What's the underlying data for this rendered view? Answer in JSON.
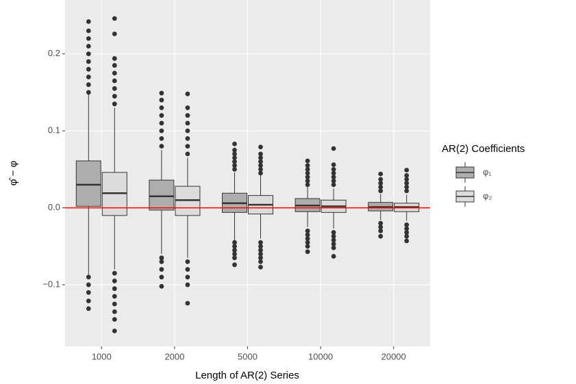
{
  "chart_data": {
    "type": "boxplot",
    "x_label": "Length of AR(2) Series",
    "y_label": "φ̂ − φ",
    "legend_title": "AR(2) Coefficients",
    "categories": [
      "1000",
      "2000",
      "5000",
      "10000",
      "20000"
    ],
    "ylim": [
      -0.18,
      0.27
    ],
    "yticks": [
      {
        "value": -0.1,
        "label": "−0.1"
      },
      {
        "value": 0,
        "label": "0.0"
      },
      0.1,
      0.2
    ],
    "grid": true,
    "hline": {
      "value": 0,
      "color": "#ff0000"
    },
    "series": [
      {
        "name": "φ₁",
        "color": "#adadad",
        "whisker_low": [
          -0.087,
          -0.06,
          -0.042,
          -0.025,
          -0.016
        ],
        "q1": [
          0.002,
          -0.003,
          -0.006,
          -0.005,
          -0.004
        ],
        "median": [
          0.03,
          0.015,
          0.006,
          0.003,
          0.001
        ],
        "q3": [
          0.061,
          0.036,
          0.019,
          0.012,
          0.007
        ],
        "whisker_high": [
          0.149,
          0.075,
          0.046,
          0.027,
          0.018
        ],
        "outliers": [
          [
            0.15,
            0.16,
            0.17,
            0.18,
            0.19,
            0.2,
            0.21,
            0.22,
            0.23,
            0.242,
            -0.09,
            -0.1,
            -0.11,
            -0.121,
            -0.131
          ],
          [
            0.08,
            0.09,
            0.1,
            0.11,
            0.12,
            0.13,
            0.14,
            0.149,
            -0.065,
            -0.07,
            -0.08,
            -0.09,
            -0.102
          ],
          [
            0.05,
            0.055,
            0.06,
            0.065,
            0.07,
            0.075,
            0.083,
            -0.045,
            -0.05,
            -0.055,
            -0.06,
            -0.065,
            -0.074
          ],
          [
            0.03,
            0.035,
            0.04,
            0.045,
            0.05,
            0.055,
            0.061,
            -0.03,
            -0.035,
            -0.04,
            -0.045,
            -0.05,
            -0.057
          ],
          [
            0.022,
            0.027,
            0.032,
            0.037,
            0.044,
            -0.02,
            -0.025,
            -0.03,
            -0.037
          ]
        ]
      },
      {
        "name": "φ₂",
        "color": "#dcdcdc",
        "whisker_low": [
          -0.08,
          -0.065,
          -0.04,
          -0.027,
          -0.017
        ],
        "q1": [
          -0.01,
          -0.01,
          -0.008,
          -0.006,
          -0.005
        ],
        "median": [
          0.019,
          0.01,
          0.004,
          0.002,
          0.001
        ],
        "q3": [
          0.046,
          0.028,
          0.016,
          0.01,
          0.006
        ],
        "whisker_high": [
          0.13,
          0.065,
          0.042,
          0.025,
          0.017
        ],
        "outliers": [
          [
            0.135,
            0.145,
            0.155,
            0.165,
            0.175,
            0.185,
            0.194,
            0.226,
            0.246,
            -0.085,
            -0.095,
            -0.105,
            -0.115,
            -0.125,
            -0.135,
            -0.145,
            -0.16
          ],
          [
            0.07,
            0.08,
            0.09,
            0.1,
            0.11,
            0.12,
            0.13,
            0.148,
            -0.07,
            -0.08,
            -0.09,
            -0.1,
            -0.124
          ],
          [
            0.045,
            0.05,
            0.055,
            0.06,
            0.065,
            0.07,
            0.079,
            -0.045,
            -0.05,
            -0.055,
            -0.06,
            -0.065,
            -0.07,
            -0.077
          ],
          [
            0.03,
            0.035,
            0.04,
            0.045,
            0.05,
            0.056,
            0.077,
            -0.032,
            -0.037,
            -0.042,
            -0.047,
            -0.052,
            -0.063
          ],
          [
            0.022,
            0.027,
            0.032,
            0.037,
            0.042,
            0.049,
            -0.022,
            -0.027,
            -0.032,
            -0.037,
            -0.043
          ]
        ]
      }
    ]
  }
}
